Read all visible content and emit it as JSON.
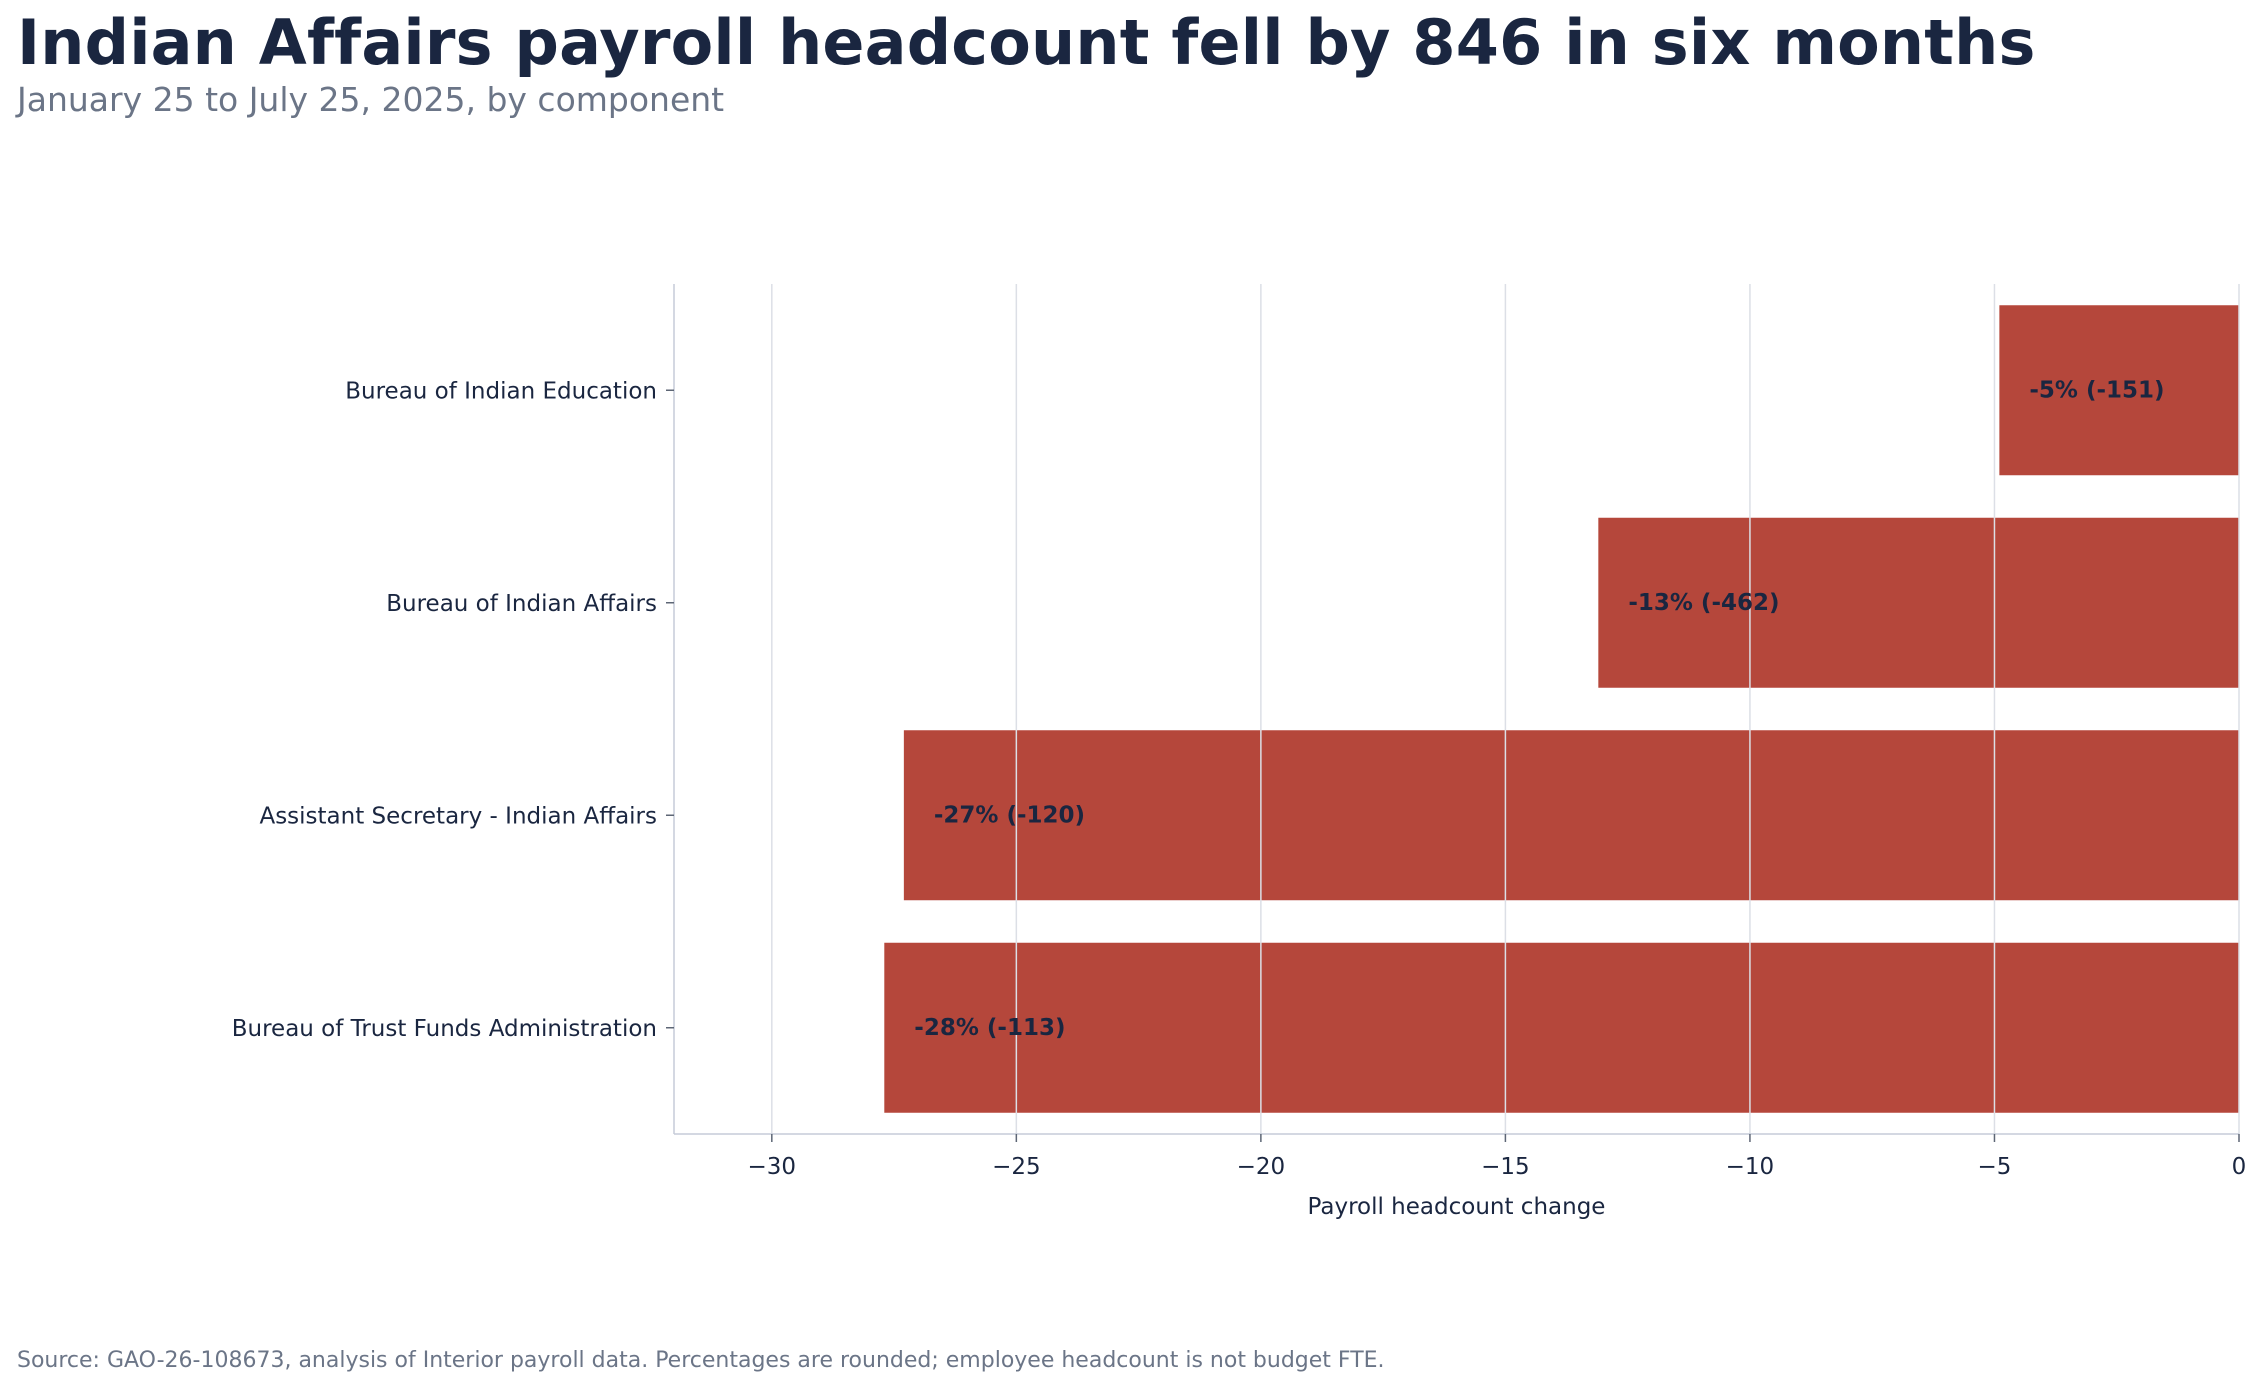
{
  "chart_data": {
    "type": "bar",
    "orientation": "horizontal",
    "title": "Indian Affairs payroll headcount fell by 846 in six months",
    "subtitle": "January 25 to July 25, 2025, by component",
    "xlabel": "Payroll headcount change",
    "ylabel": "",
    "xlim": [
      -32,
      0
    ],
    "x_ticks": [
      -30,
      -25,
      -20,
      -15,
      -10,
      -5,
      0
    ],
    "x_tick_labels": [
      "−30",
      "−25",
      "−20",
      "−15",
      "−10",
      "−5",
      "0"
    ],
    "grid": "vertical",
    "categories": [
      "Bureau of Indian Education",
      "Bureau of Indian Affairs",
      "Assistant Secretary - Indian Affairs",
      "Bureau of Trust Funds Administration"
    ],
    "values": [
      -4.9,
      -13.1,
      -27.3,
      -27.7
    ],
    "data_labels": [
      "-5% (-151)",
      "-13% (-462)",
      "-27% (-120)",
      "-28% (-113)"
    ],
    "bar_color": "#b5473b",
    "source": "Source: GAO-26-108673, analysis of Interior payroll data. Percentages are rounded; employee headcount is not budget FTE."
  }
}
